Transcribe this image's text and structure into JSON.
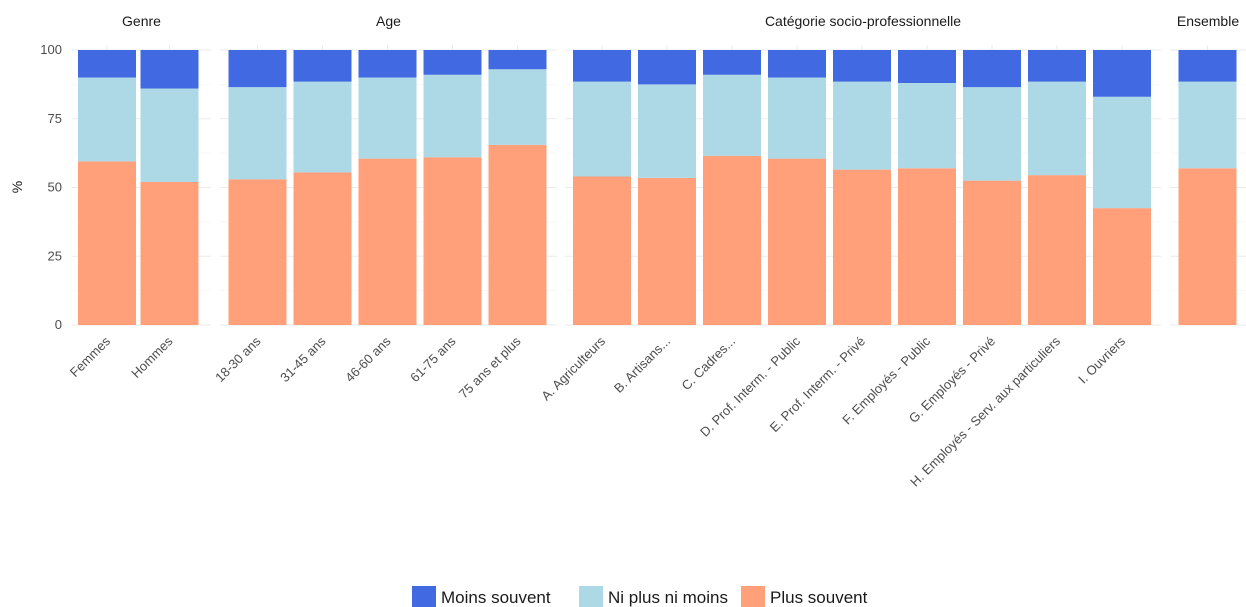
{
  "chart_data": {
    "type": "bar",
    "stacked": true,
    "ylabel": "%",
    "xlabel": "",
    "ylim": [
      0,
      100
    ],
    "yticks": [
      "0",
      "25",
      "50",
      "75",
      "100"
    ],
    "grid": true,
    "legend_position": "bottom",
    "series": [
      {
        "name": "Plus souvent",
        "color": "#FFA07A"
      },
      {
        "name": "Ni plus ni moins",
        "color": "#ADD8E6"
      },
      {
        "name": "Moins souvent",
        "color": "#4169E1"
      }
    ],
    "facets": [
      {
        "title": "Genre",
        "categories": [
          "Femmes",
          "Hommes"
        ],
        "values": {
          "Plus souvent": [
            59.5,
            52
          ],
          "Ni plus ni moins": [
            30.5,
            34
          ],
          "Moins souvent": [
            10,
            14
          ]
        }
      },
      {
        "title": "Age",
        "categories": [
          "18-30 ans",
          "31-45 ans",
          "46-60 ans",
          "61-75 ans",
          "75 ans et plus"
        ],
        "values": {
          "Plus souvent": [
            53,
            55.5,
            60.5,
            61,
            65.5
          ],
          "Ni plus ni moins": [
            33.5,
            33,
            29.5,
            30,
            27.5
          ],
          "Moins souvent": [
            13.5,
            11.5,
            10,
            9,
            7
          ]
        }
      },
      {
        "title": "Catégorie socio-professionnelle",
        "categories": [
          "A. Agriculteurs",
          "B. Artisans...",
          "C. Cadres...",
          "D. Prof. Interm. - Public",
          "E. Prof. Interm. - Privé",
          "F. Employés - Public",
          "G. Employés - Privé",
          "H. Employés - Serv. aux particuliers",
          "I. Ouvriers"
        ],
        "values": {
          "Plus souvent": [
            54,
            53.5,
            61.5,
            60.5,
            56.5,
            57,
            52.5,
            54.5,
            42.5
          ],
          "Ni plus ni moins": [
            34.5,
            34,
            29.5,
            29.5,
            32,
            31,
            34,
            34,
            40.5
          ],
          "Moins souvent": [
            11.5,
            12.5,
            9,
            10,
            11.5,
            12,
            13.5,
            11.5,
            17
          ]
        }
      },
      {
        "title": "Ensemble",
        "categories": [
          ""
        ],
        "values": {
          "Plus souvent": [
            57
          ],
          "Ni plus ni moins": [
            31.5
          ],
          "Moins souvent": [
            11.5
          ]
        }
      }
    ]
  }
}
